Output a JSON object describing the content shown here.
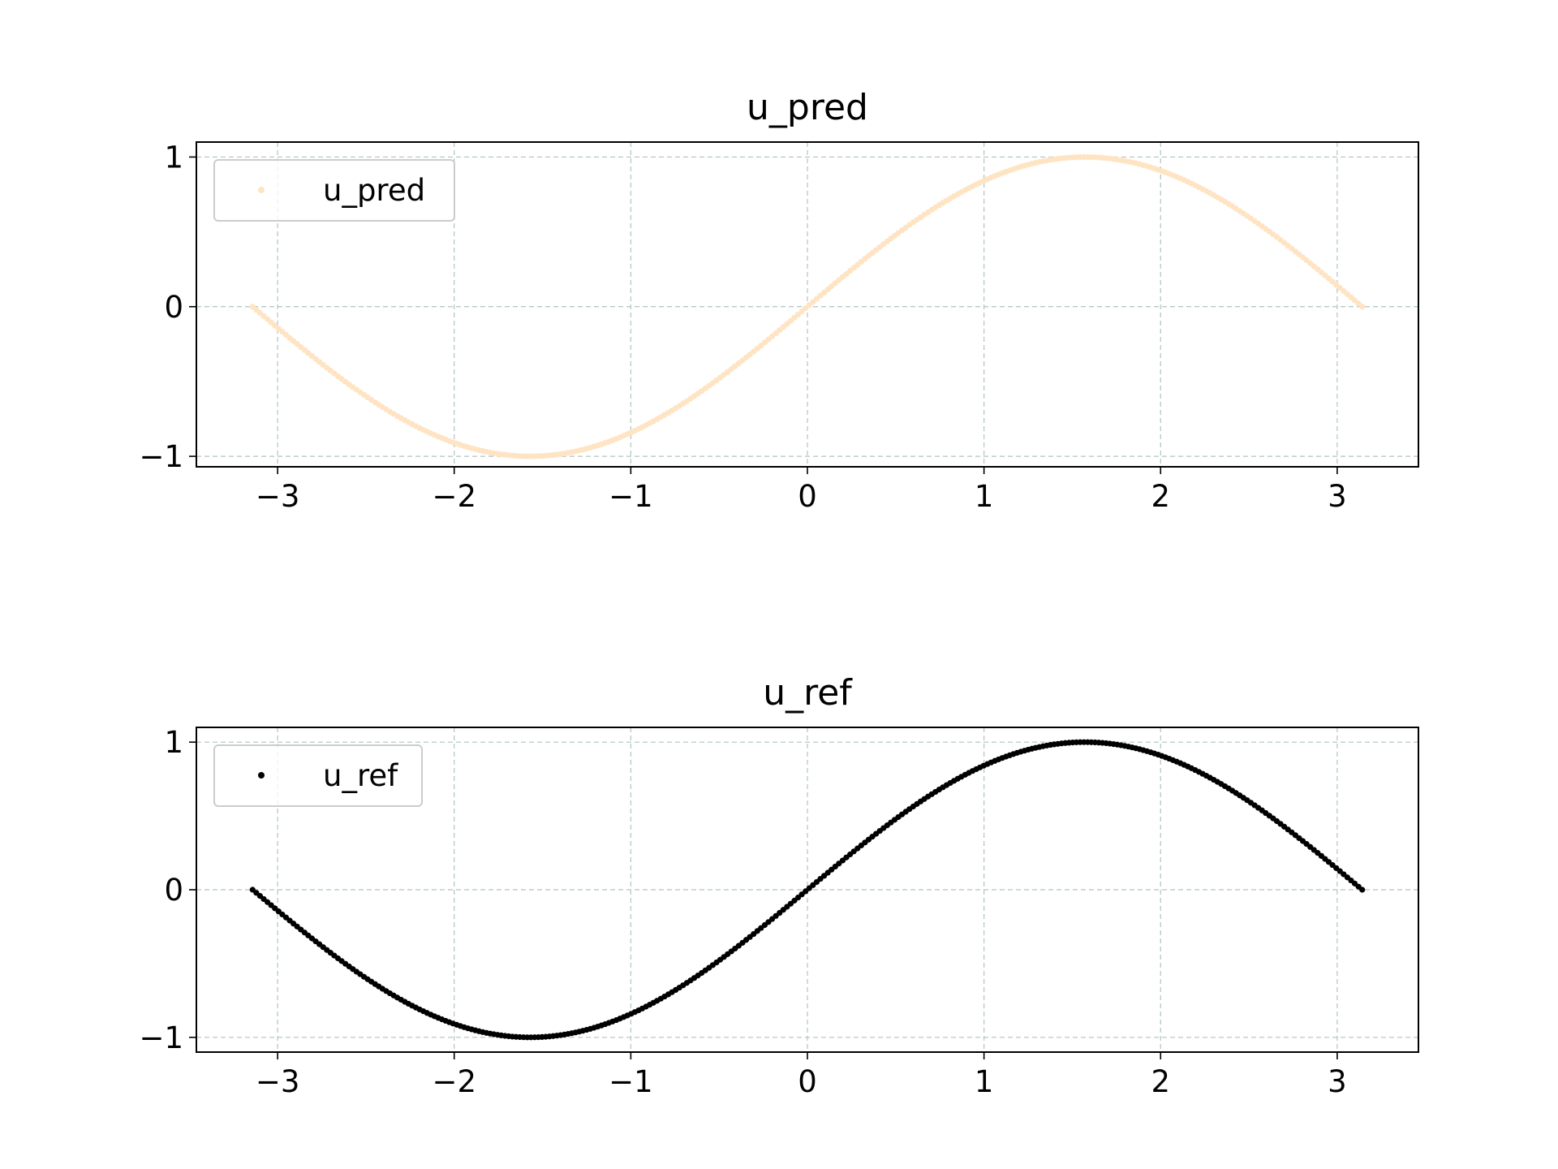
{
  "chart_data": [
    {
      "type": "scatter",
      "title": "u_pred",
      "xlabel": "",
      "ylabel": "",
      "xlim": [
        -3.46,
        3.46
      ],
      "ylim": [
        -1.07,
        1.1
      ],
      "xticks": [
        -3,
        -2,
        -1,
        0,
        1,
        2,
        3
      ],
      "xtick_labels": [
        "−3",
        "−2",
        "−1",
        "0",
        "1",
        "2",
        "3"
      ],
      "yticks": [
        -1,
        0,
        1
      ],
      "ytick_labels": [
        "−1",
        "0",
        "1"
      ],
      "grid": true,
      "legend": "upper-left",
      "series": [
        {
          "name": "u_pred",
          "color": "#ffe4c4",
          "function": "sin(x)",
          "x_range": [
            -3.14159,
            3.14159
          ],
          "n_points": 300
        }
      ]
    },
    {
      "type": "scatter",
      "title": "u_ref",
      "xlabel": "",
      "ylabel": "",
      "xlim": [
        -3.46,
        3.46
      ],
      "ylim": [
        -1.1,
        1.1
      ],
      "xticks": [
        -3,
        -2,
        -1,
        0,
        1,
        2,
        3
      ],
      "xtick_labels": [
        "−3",
        "−2",
        "−1",
        "0",
        "1",
        "2",
        "3"
      ],
      "yticks": [
        -1,
        0,
        1
      ],
      "ytick_labels": [
        "−1",
        "0",
        "1"
      ],
      "grid": true,
      "legend": "upper-left",
      "series": [
        {
          "name": "u_ref",
          "color": "#000000",
          "function": "sin(x)",
          "x_range": [
            -3.14159,
            3.14159
          ],
          "n_points": 300
        }
      ]
    }
  ]
}
